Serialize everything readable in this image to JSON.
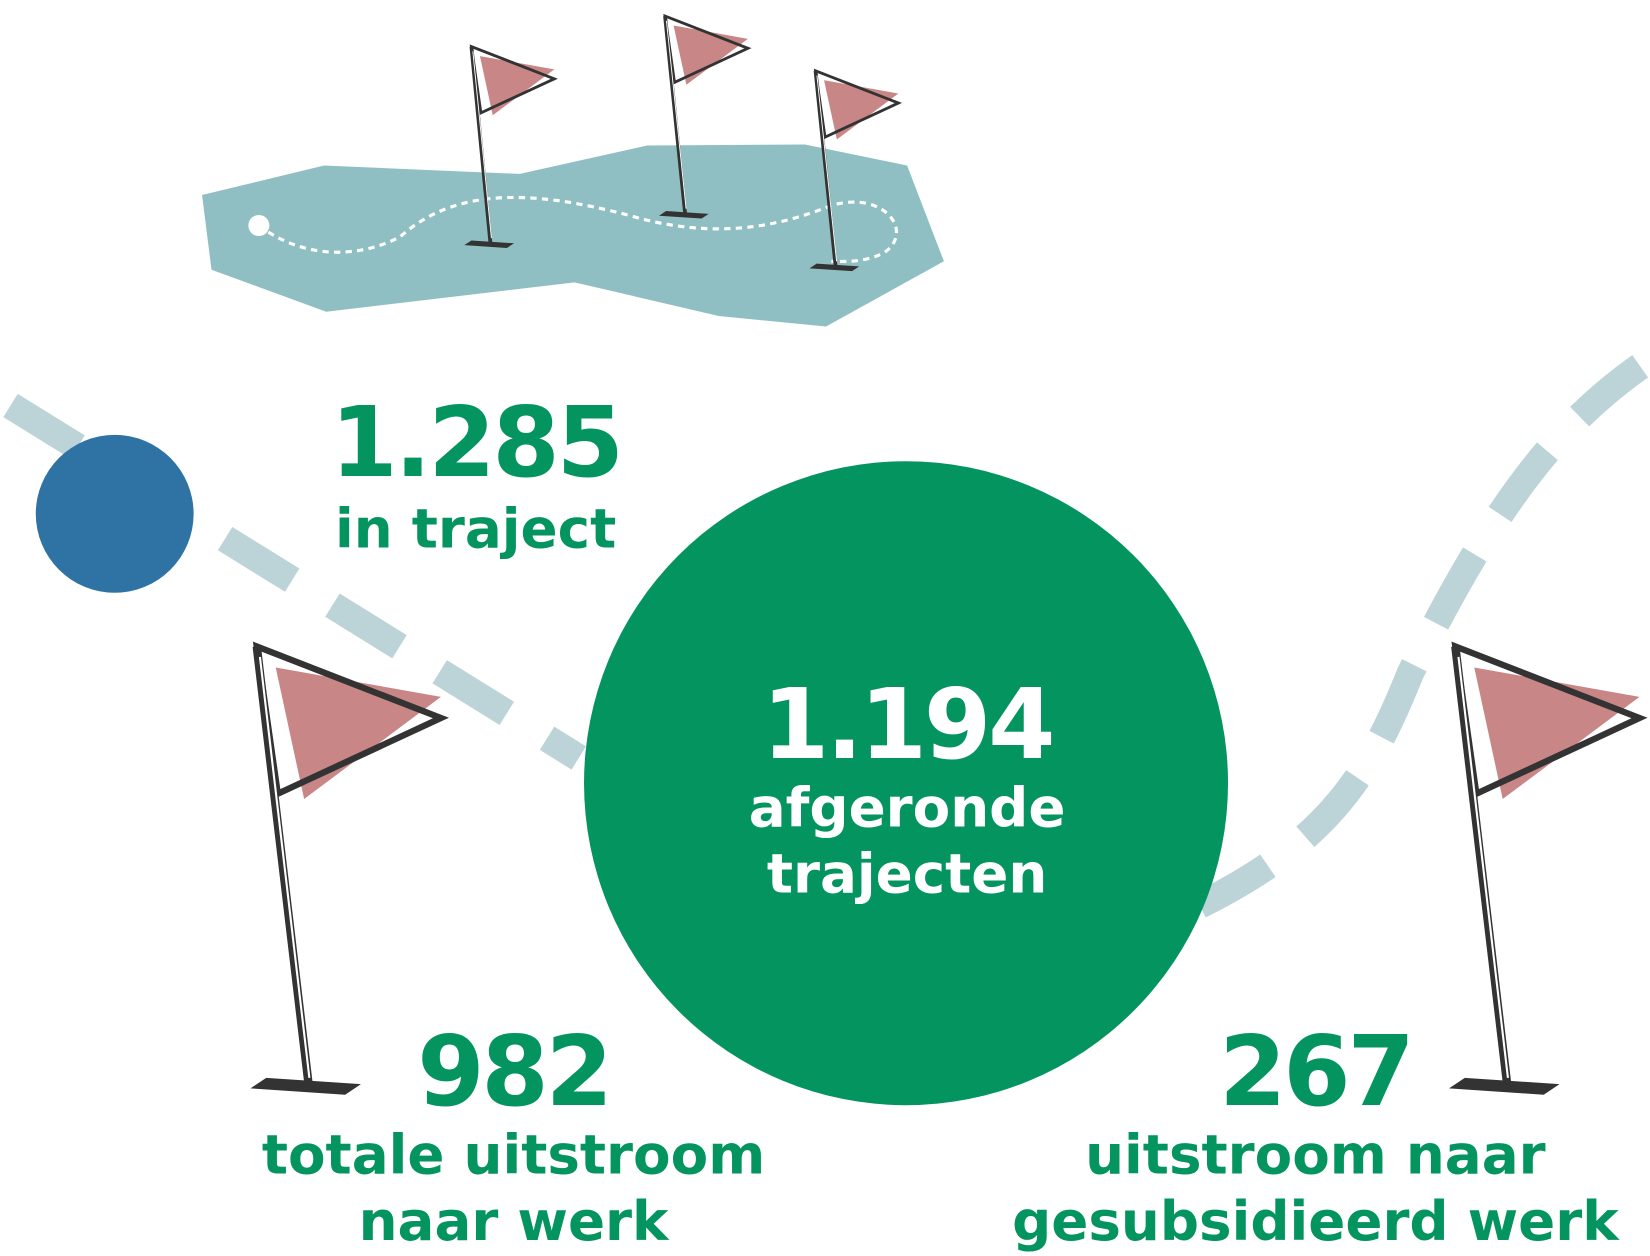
{
  "stats": [
    {
      "value": "1.285",
      "label": [
        "in traject"
      ]
    },
    {
      "value": "1.194",
      "label": [
        "afgeronde",
        "trajecten"
      ]
    },
    {
      "value": "982",
      "label": [
        "totale uitstroom",
        "naar werk"
      ]
    },
    {
      "value": "267",
      "label": [
        "uitstroom naar",
        "gesubsidieerd werk"
      ]
    }
  ]
}
